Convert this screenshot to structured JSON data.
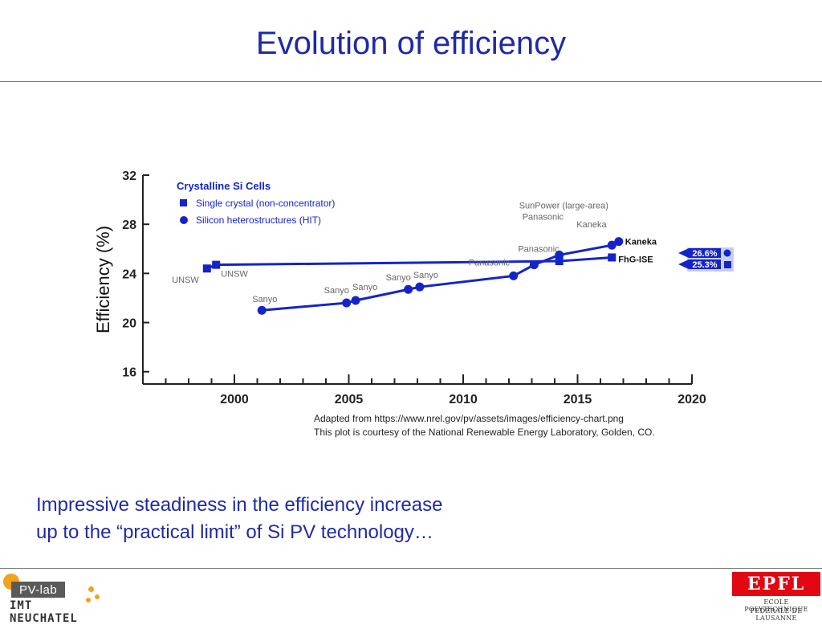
{
  "slide": {
    "title": "Evolution of efficiency",
    "caption_line1": "Impressive steadiness in the efficiency increase",
    "caption_line2": "up to the “practical limit” of Si PV technology…",
    "credit_line1": "Adapted from https://www.nrel.gov/pv/assets/images/efficiency-chart.png",
    "credit_line2": "This plot is courtesy of the National Renewable Energy Laboratory, Golden, CO."
  },
  "logos": {
    "pvlab_text": "PV-lab",
    "pvlab_sub": "IMT NEUCHATEL",
    "epfl_mark": "EPFL",
    "epfl_line1": "ECOLE POLYTECHNIQUE",
    "epfl_line2": "FÉDÉRALE DE LAUSANNE"
  },
  "colors": {
    "accent": "#1f2aa6",
    "series": "#1424c8",
    "epfl_red": "#e30613",
    "pv_orange": "#f3a21b"
  },
  "chart_data": {
    "type": "line",
    "title": "",
    "legend_title": "Crystalline Si Cells",
    "ylabel": "Efficiency (%)",
    "xlabel": "",
    "xlim": [
      1996,
      2020
    ],
    "ylim": [
      15,
      32
    ],
    "x_ticks": [
      2000,
      2005,
      2010,
      2015,
      2020
    ],
    "y_ticks": [
      16,
      20,
      24,
      28,
      32
    ],
    "legend_position": "top-left",
    "series": [
      {
        "name": "Single crystal (non-concentrator)",
        "marker": "square",
        "points": [
          {
            "x": 1998.8,
            "y": 24.4,
            "label": "UNSW"
          },
          {
            "x": 1999.2,
            "y": 24.7,
            "label": "UNSW"
          },
          {
            "x": 2014.2,
            "y": 25.0,
            "label": ""
          },
          {
            "x": 2016.5,
            "y": 25.3,
            "label": "FhG-ISE"
          }
        ]
      },
      {
        "name": "Silicon heterostructures (HIT)",
        "marker": "circle",
        "points": [
          {
            "x": 2001.2,
            "y": 21.0,
            "label": "Sanyo"
          },
          {
            "x": 2004.9,
            "y": 21.6,
            "label": "Sanyo"
          },
          {
            "x": 2005.3,
            "y": 21.8,
            "label": "Sanyo"
          },
          {
            "x": 2007.6,
            "y": 22.7,
            "label": "Sanyo"
          },
          {
            "x": 2008.1,
            "y": 22.9,
            "label": "Sanyo"
          },
          {
            "x": 2012.2,
            "y": 23.8,
            "label": "Panasonic"
          },
          {
            "x": 2013.1,
            "y": 24.7,
            "label": "Panasonic"
          },
          {
            "x": 2014.2,
            "y": 25.5,
            "label": "SunPower (large-area) Panasonic"
          },
          {
            "x": 2016.5,
            "y": 26.3,
            "label": "Kaneka"
          },
          {
            "x": 2016.8,
            "y": 26.6,
            "label": "Kaneka"
          }
        ]
      }
    ],
    "records": [
      {
        "label": "26.6%",
        "marker": "circle"
      },
      {
        "label": "25.3%",
        "marker": "square"
      }
    ]
  }
}
